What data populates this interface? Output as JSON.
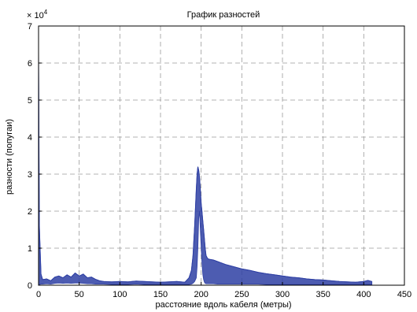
{
  "chart_data": {
    "type": "line",
    "title": "График разностей",
    "xlabel": "расстояние вдоль кабеля (метры)",
    "ylabel": "разности (попугаи)",
    "y_multiplier": "× 10",
    "y_multiplier_exp": "4",
    "xlim": [
      0,
      450
    ],
    "ylim": [
      0,
      7
    ],
    "x_ticks": [
      0,
      50,
      100,
      150,
      200,
      250,
      300,
      350,
      400,
      450
    ],
    "y_ticks": [
      0,
      1,
      2,
      3,
      4,
      5,
      6,
      7
    ],
    "grid": true,
    "grid_style": "dashed",
    "series_color": "#2e3fa3",
    "series": [
      {
        "name": "",
        "x": [
          0,
          1,
          3,
          5,
          10,
          15,
          20,
          25,
          30,
          35,
          40,
          45,
          50,
          55,
          60,
          65,
          70,
          75,
          80,
          90,
          100,
          110,
          120,
          130,
          140,
          150,
          160,
          170,
          180,
          185,
          188,
          190,
          192,
          194,
          195,
          196,
          197,
          198,
          199,
          200,
          201,
          202,
          203,
          204,
          205,
          206,
          208,
          210,
          215,
          220,
          225,
          230,
          240,
          250,
          260,
          270,
          280,
          290,
          300,
          310,
          320,
          330,
          340,
          350,
          360,
          370,
          380,
          390,
          400,
          405,
          410
        ],
        "upper": [
          6.3,
          1.6,
          0.3,
          0.15,
          0.17,
          0.12,
          0.22,
          0.25,
          0.2,
          0.28,
          0.22,
          0.33,
          0.25,
          0.3,
          0.2,
          0.22,
          0.16,
          0.12,
          0.1,
          0.09,
          0.1,
          0.09,
          0.11,
          0.1,
          0.09,
          0.08,
          0.09,
          0.1,
          0.08,
          0.2,
          0.4,
          0.8,
          1.6,
          2.6,
          3.0,
          3.2,
          3.1,
          2.9,
          2.6,
          2.2,
          2.0,
          1.75,
          1.5,
          1.25,
          1.0,
          0.8,
          0.72,
          0.7,
          0.68,
          0.64,
          0.6,
          0.56,
          0.5,
          0.44,
          0.4,
          0.35,
          0.31,
          0.28,
          0.25,
          0.22,
          0.2,
          0.17,
          0.15,
          0.14,
          0.12,
          0.1,
          0.09,
          0.08,
          0.1,
          0.13,
          0.1
        ],
        "lower": [
          0,
          0.02,
          0.03,
          0.03,
          0.04,
          0.03,
          0.05,
          0.06,
          0.05,
          0.06,
          0.05,
          0.06,
          0.06,
          0.05,
          0.04,
          0.04,
          0.03,
          0.03,
          0.03,
          0.02,
          0.02,
          0.02,
          0.03,
          0.02,
          0.02,
          0.02,
          0.02,
          0.02,
          0.02,
          0.02,
          0.03,
          0.05,
          0.1,
          0.2,
          0.5,
          1.0,
          1.8,
          2.0,
          1.5,
          1.0,
          0.6,
          0.3,
          0.15,
          0.08,
          0.05,
          0.04,
          0.04,
          0.04,
          0.04,
          0.03,
          0.03,
          0.03,
          0.03,
          0.03,
          0.03,
          0.03,
          0.02,
          0.02,
          0.02,
          0.02,
          0.02,
          0.02,
          0.02,
          0.02,
          0.02,
          0.02,
          0.02,
          0.02,
          0.02,
          0.02,
          0.02
        ]
      }
    ]
  }
}
